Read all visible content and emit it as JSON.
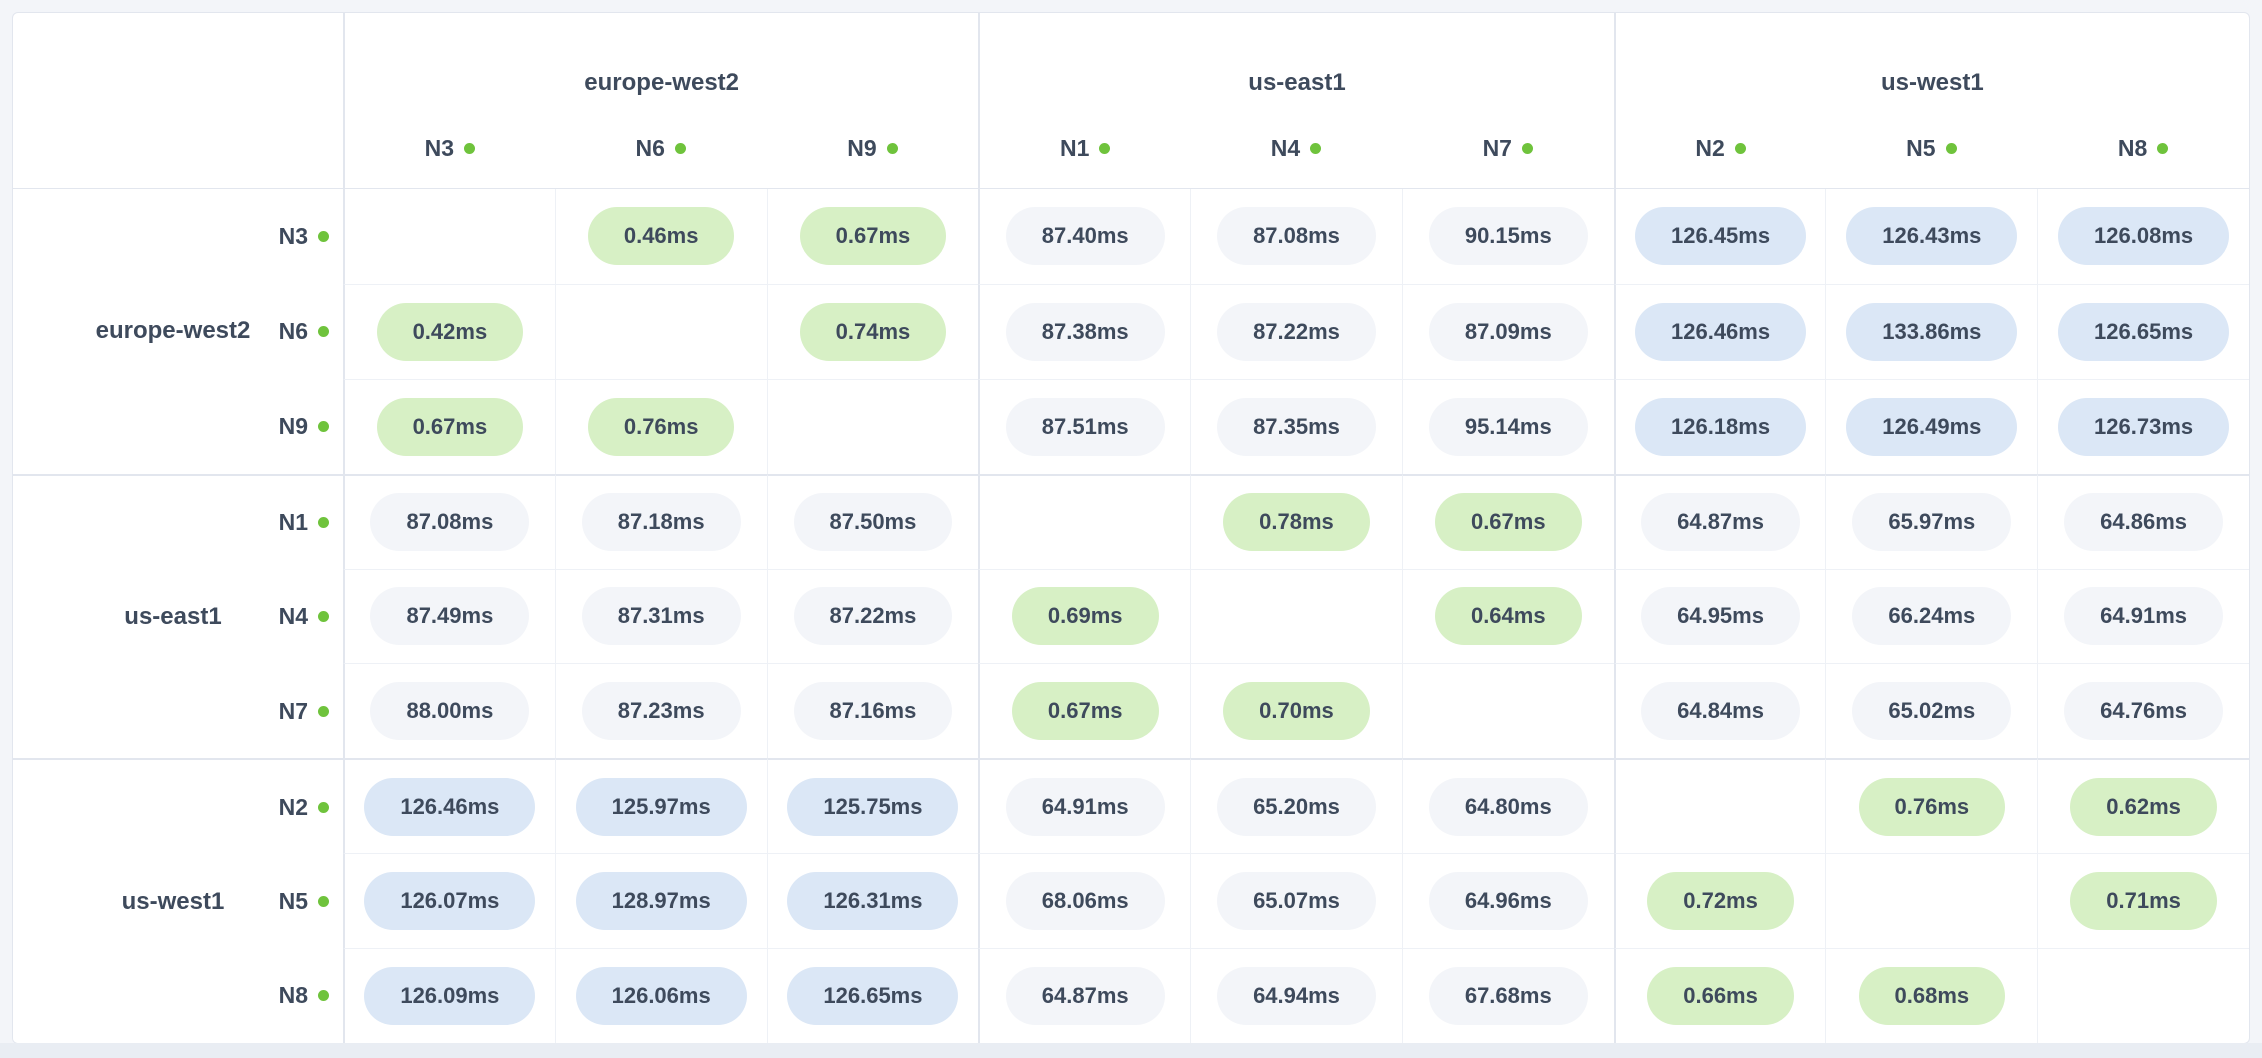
{
  "colors": {
    "text": "#3e4a5c",
    "status_dot": "#6fc33c",
    "tier_low_bg": "#d7f0c5",
    "tier_mid_bg": "#f3f5f9",
    "tier_high_bg": "#dbe7f6",
    "grid_line_inner": "#eef1f6",
    "grid_line_group": "#e2e6ee",
    "scrollbar_track": "#e9edf3",
    "card_bg": "#ffffff",
    "page_bg": "#f3f5f9"
  },
  "chart_data": {
    "type": "heatmap",
    "title": "",
    "unit": "ms",
    "value_suffix": "ms",
    "value_decimals": 2,
    "legend": "none",
    "column_groups": [
      {
        "region": "europe-west2",
        "nodes": [
          "N3",
          "N6",
          "N9"
        ]
      },
      {
        "region": "us-east1",
        "nodes": [
          "N1",
          "N4",
          "N7"
        ]
      },
      {
        "region": "us-west1",
        "nodes": [
          "N2",
          "N5",
          "N8"
        ]
      }
    ],
    "row_groups": [
      {
        "region": "europe-west2",
        "nodes": [
          "N3",
          "N6",
          "N9"
        ]
      },
      {
        "region": "us-east1",
        "nodes": [
          "N1",
          "N4",
          "N7"
        ]
      },
      {
        "region": "us-west1",
        "nodes": [
          "N2",
          "N5",
          "N8"
        ]
      }
    ],
    "columns": [
      "N3",
      "N6",
      "N9",
      "N1",
      "N4",
      "N7",
      "N2",
      "N5",
      "N8"
    ],
    "rows": [
      "N3",
      "N6",
      "N9",
      "N1",
      "N4",
      "N7",
      "N2",
      "N5",
      "N8"
    ],
    "matrix_ms": [
      [
        null,
        0.46,
        0.67,
        87.4,
        87.08,
        90.15,
        126.45,
        126.43,
        126.08
      ],
      [
        0.42,
        null,
        0.74,
        87.38,
        87.22,
        87.09,
        126.46,
        133.86,
        126.65
      ],
      [
        0.67,
        0.76,
        null,
        87.51,
        87.35,
        95.14,
        126.18,
        126.49,
        126.73
      ],
      [
        87.08,
        87.18,
        87.5,
        null,
        0.78,
        0.67,
        64.87,
        65.97,
        64.86
      ],
      [
        87.49,
        87.31,
        87.22,
        0.69,
        null,
        0.64,
        64.95,
        66.24,
        64.91
      ],
      [
        88.0,
        87.23,
        87.16,
        0.67,
        0.7,
        null,
        64.84,
        65.02,
        64.76
      ],
      [
        126.46,
        125.97,
        125.75,
        64.91,
        65.2,
        64.8,
        null,
        0.76,
        0.62
      ],
      [
        126.07,
        128.97,
        126.31,
        68.06,
        65.07,
        64.96,
        0.72,
        null,
        0.71
      ],
      [
        126.09,
        126.06,
        126.65,
        64.87,
        64.94,
        67.68,
        0.66,
        0.68,
        null
      ]
    ],
    "tiers": {
      "low_max_ms": 1,
      "mid_max_ms": 100
    },
    "diagonal": "blank"
  }
}
